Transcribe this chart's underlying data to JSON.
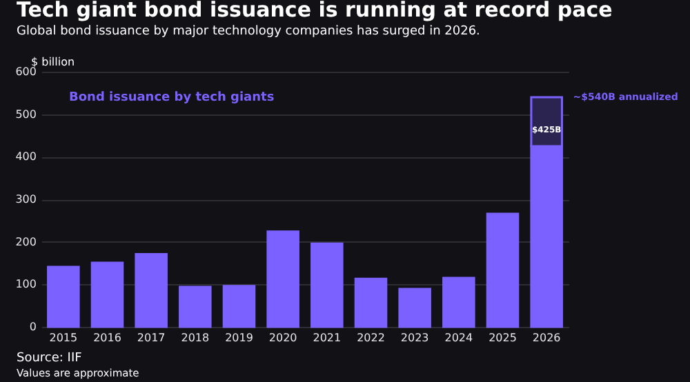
{
  "chart_data": {
    "type": "bar",
    "title": "Tech giant bond issuance is running at record pace",
    "subtitle": "Global bond issuance by major technology companies has surged in 2026.",
    "ylabel": "$ billion",
    "categories": [
      "2015",
      "2016",
      "2017",
      "2018",
      "2019",
      "2020",
      "2021",
      "2022",
      "2023",
      "2024",
      "2025",
      "2026"
    ],
    "stacked": true,
    "series": [
      {
        "name": "Bond issuance by tech giants",
        "color": "#7b61ff",
        "values": [
          141,
          151,
          171,
          94,
          96,
          224,
          196,
          113,
          89,
          115,
          266,
          425
        ]
      },
      {
        "color": "#2b2450",
        "values": [
          null,
          null,
          null,
          null,
          null,
          null,
          null,
          null,
          null,
          null,
          null,
          115
        ]
      }
    ],
    "ylim": [
      0,
      600
    ],
    "yticks": [
      0,
      100,
      200,
      300,
      400,
      500,
      600
    ],
    "grid": "y",
    "legend": "top left",
    "annotations": [
      {
        "text": "~$540B annualized",
        "x": "2026",
        "y": 540
      },
      {
        "text": "$425B",
        "x": "2026",
        "y": 425
      },
      "Source: IIF",
      "Values are approximate"
    ]
  }
}
